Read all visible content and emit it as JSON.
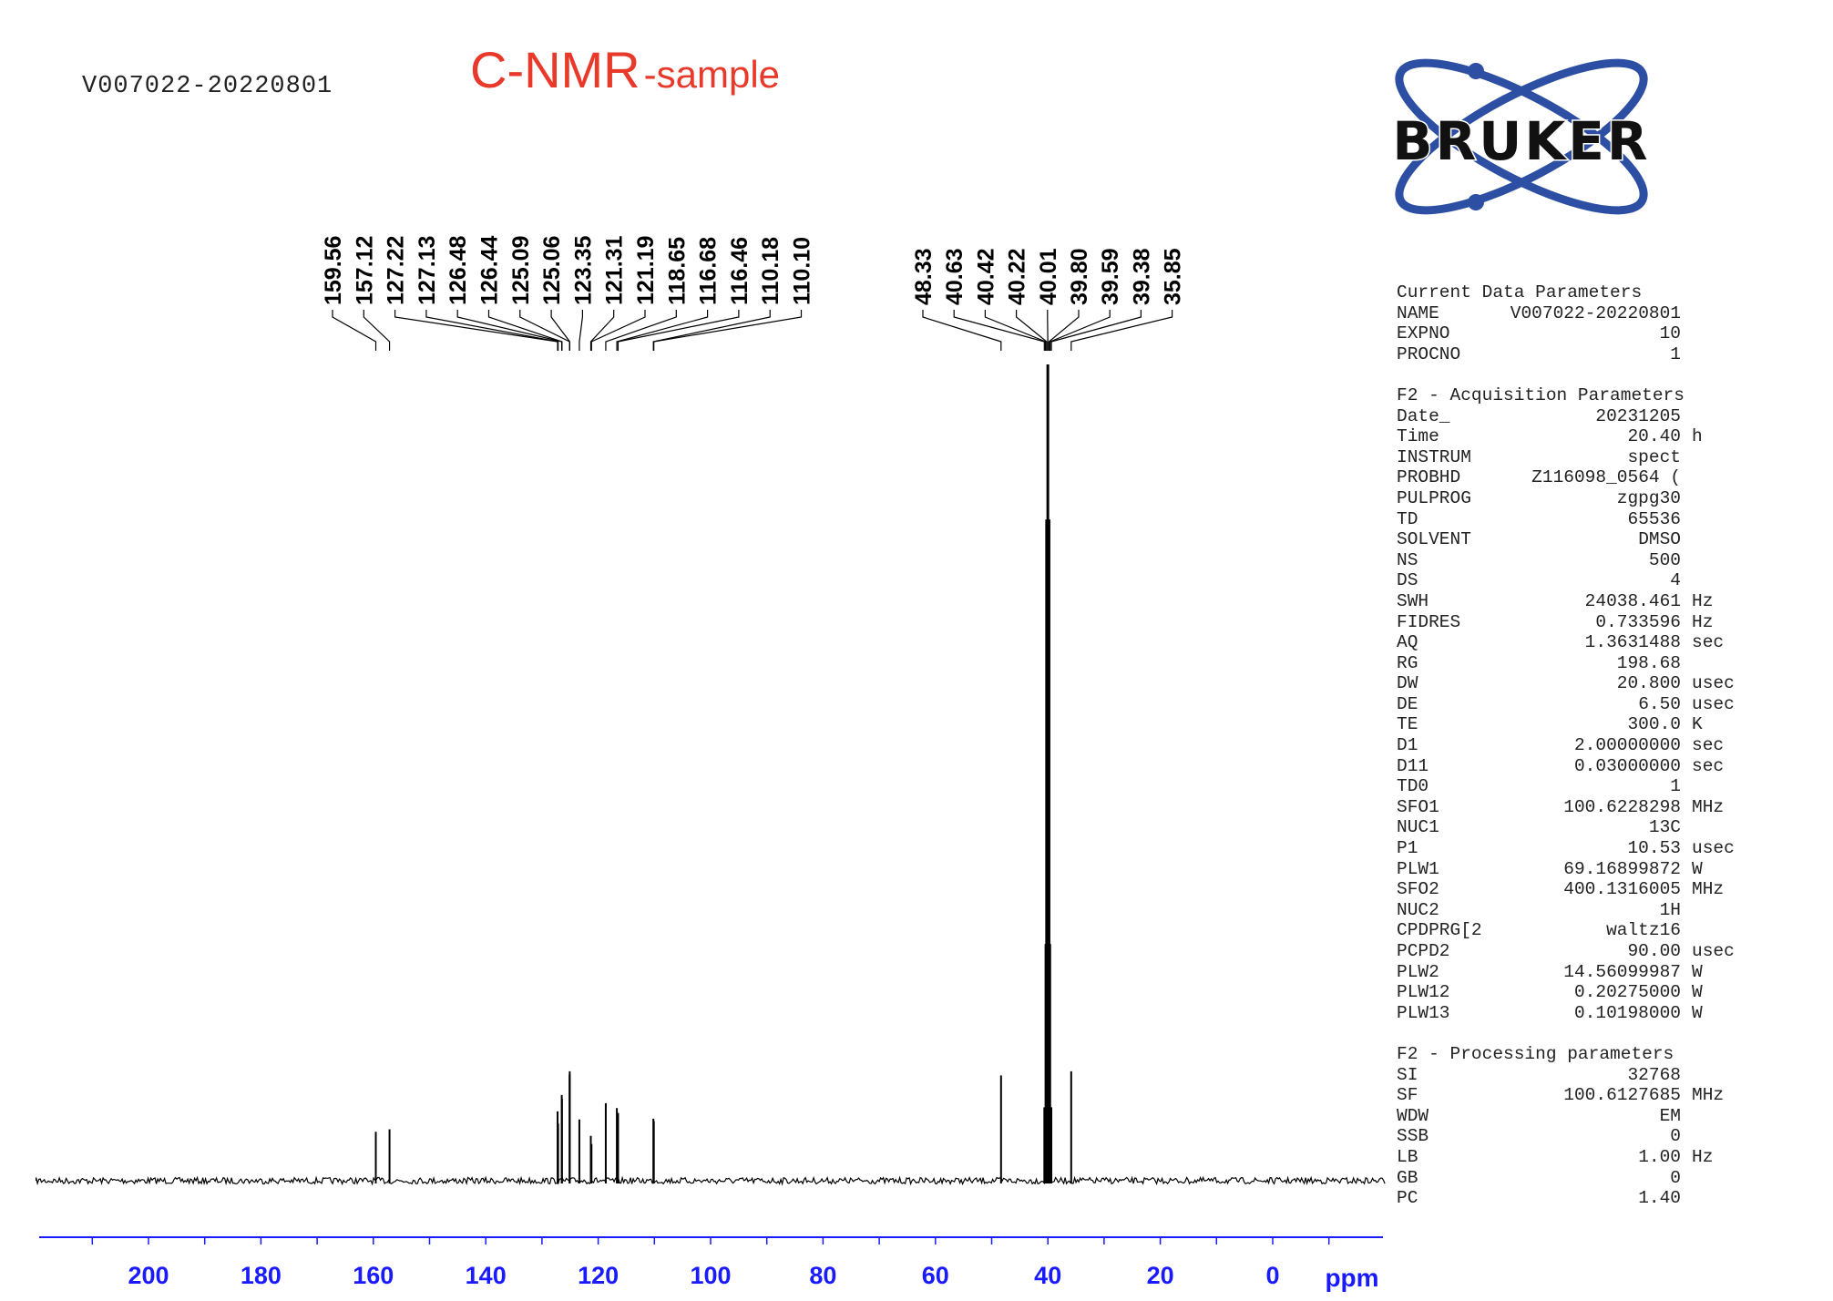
{
  "sample_id": "V007022-20220801",
  "title": {
    "main": "C-NMR",
    "suffix": "-sample",
    "color": "#e8392a"
  },
  "logo": {
    "text": "BRUKER",
    "color": "#2d4fa3"
  },
  "parameters": [
    {
      "title": "Current Data Parameters",
      "rows": [
        [
          "NAME",
          "V007022-20220801",
          ""
        ],
        [
          "EXPNO",
          "10",
          ""
        ],
        [
          "PROCNO",
          "1",
          ""
        ]
      ]
    },
    {
      "title": "F2 - Acquisition Parameters",
      "rows": [
        [
          "Date_",
          "20231205",
          ""
        ],
        [
          "Time",
          "20.40",
          "h"
        ],
        [
          "INSTRUM",
          "spect",
          ""
        ],
        [
          "PROBHD",
          "Z116098_0564 (",
          ""
        ],
        [
          "PULPROG",
          "zgpg30",
          ""
        ],
        [
          "TD",
          "65536",
          ""
        ],
        [
          "SOLVENT",
          "DMSO",
          ""
        ],
        [
          "NS",
          "500",
          ""
        ],
        [
          "DS",
          "4",
          ""
        ],
        [
          "SWH",
          "24038.461",
          "Hz"
        ],
        [
          "FIDRES",
          "0.733596",
          "Hz"
        ],
        [
          "AQ",
          "1.3631488",
          "sec"
        ],
        [
          "RG",
          "198.68",
          ""
        ],
        [
          "DW",
          "20.800",
          "usec"
        ],
        [
          "DE",
          "6.50",
          "usec"
        ],
        [
          "TE",
          "300.0",
          "K"
        ],
        [
          "D1",
          "2.00000000",
          "sec"
        ],
        [
          "D11",
          "0.03000000",
          "sec"
        ],
        [
          "TD0",
          "1",
          ""
        ],
        [
          "SFO1",
          "100.6228298",
          "MHz"
        ],
        [
          "NUC1",
          "13C",
          ""
        ],
        [
          "P1",
          "10.53",
          "usec"
        ],
        [
          "PLW1",
          "69.16899872",
          "W"
        ],
        [
          "SFO2",
          "400.1316005",
          "MHz"
        ],
        [
          "NUC2",
          "1H",
          ""
        ],
        [
          "CPDPRG[2",
          "waltz16",
          ""
        ],
        [
          "PCPD2",
          "90.00",
          "usec"
        ],
        [
          "PLW2",
          "14.56099987",
          "W"
        ],
        [
          "PLW12",
          "0.20275000",
          "W"
        ],
        [
          "PLW13",
          "0.10198000",
          "W"
        ]
      ]
    },
    {
      "title": "F2 - Processing parameters",
      "rows": [
        [
          "SI",
          "32768",
          ""
        ],
        [
          "SF",
          "100.6127685",
          "MHz"
        ],
        [
          "WDW",
          "EM",
          ""
        ],
        [
          "SSB",
          "0",
          ""
        ],
        [
          "LB",
          "1.00",
          "Hz"
        ],
        [
          "GB",
          "0",
          ""
        ],
        [
          "PC",
          "1.40",
          ""
        ]
      ]
    }
  ],
  "chart_data": {
    "type": "line",
    "xlabel": "ppm",
    "xlim": [
      220,
      -20
    ],
    "x_reversed": true,
    "xticks": [
      200,
      180,
      160,
      140,
      120,
      100,
      80,
      60,
      40,
      20,
      0
    ],
    "xtick_labels": [
      "200",
      "180",
      "160",
      "140",
      "120",
      "100",
      "80",
      "60",
      "40",
      "20",
      "0"
    ],
    "axis_color": "#1a1aff",
    "grid": false,
    "peak_groups": [
      {
        "peaks": [
          {
            "ppm": 159.56,
            "label": "159.56",
            "intensity": 6.0
          },
          {
            "ppm": 157.12,
            "label": "157.12",
            "intensity": 6.3
          },
          {
            "ppm": 127.22,
            "label": "127.22",
            "intensity": 8.5
          },
          {
            "ppm": 127.13,
            "label": "127.13",
            "intensity": 7.0
          },
          {
            "ppm": 126.48,
            "label": "126.48",
            "intensity": 10.5
          },
          {
            "ppm": 126.44,
            "label": "126.44",
            "intensity": 10.0
          },
          {
            "ppm": 125.09,
            "label": "125.09",
            "intensity": 13.0
          },
          {
            "ppm": 125.06,
            "label": "125.06",
            "intensity": 13.4
          },
          {
            "ppm": 123.35,
            "label": "123.35",
            "intensity": 7.5
          },
          {
            "ppm": 121.31,
            "label": "121.31",
            "intensity": 5.5
          },
          {
            "ppm": 121.19,
            "label": "121.19",
            "intensity": 4.5
          },
          {
            "ppm": 118.65,
            "label": "118.65",
            "intensity": 9.5
          },
          {
            "ppm": 116.68,
            "label": "116.68",
            "intensity": 8.9
          },
          {
            "ppm": 116.46,
            "label": "116.46",
            "intensity": 8.3
          },
          {
            "ppm": 110.18,
            "label": "110.18",
            "intensity": 7.6
          },
          {
            "ppm": 110.1,
            "label": "110.10",
            "intensity": 7.3
          }
        ]
      },
      {
        "peaks": [
          {
            "ppm": 48.33,
            "label": "48.33",
            "intensity": 12.9
          },
          {
            "ppm": 40.63,
            "label": "40.63",
            "intensity": 9
          },
          {
            "ppm": 40.42,
            "label": "40.42",
            "intensity": 29
          },
          {
            "ppm": 40.22,
            "label": "40.22",
            "intensity": 81
          },
          {
            "ppm": 40.01,
            "label": "40.01",
            "intensity": 100
          },
          {
            "ppm": 39.8,
            "label": "39.80",
            "intensity": 81
          },
          {
            "ppm": 39.59,
            "label": "39.59",
            "intensity": 29
          },
          {
            "ppm": 39.38,
            "label": "39.38",
            "intensity": 9
          },
          {
            "ppm": 35.85,
            "label": "35.85",
            "intensity": 13.4
          }
        ]
      }
    ]
  }
}
